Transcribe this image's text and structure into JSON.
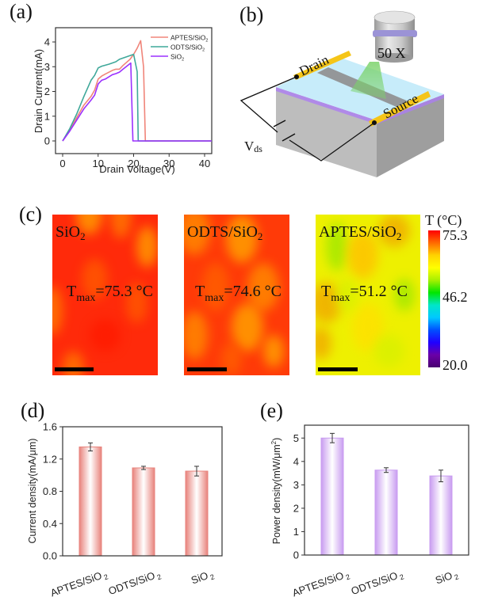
{
  "panels": {
    "a": "(a)",
    "b": "(b)",
    "c": "(c)",
    "d": "(d)",
    "e": "(e)"
  },
  "chart_data": [
    {
      "id": "a",
      "type": "line",
      "title": "",
      "xlabel": "Drain Voltage(V)",
      "ylabel": "Drain Current(mA)",
      "xlim": [
        -2,
        42
      ],
      "ylim": [
        -0.5,
        4.4
      ],
      "xticks": [
        0,
        10,
        20,
        30,
        40
      ],
      "yticks": [
        0,
        1,
        2,
        3,
        4
      ],
      "legend_position": "top-right",
      "series": [
        {
          "name": "APTES/SiO2",
          "label_main": "APTES/SiO",
          "label_sub": "2",
          "color": "#f0857a",
          "points": [
            [
              0,
              0
            ],
            [
              2,
              0.45
            ],
            [
              4,
              0.95
            ],
            [
              6,
              1.45
            ],
            [
              8,
              1.8
            ],
            [
              9,
              2.05
            ],
            [
              10,
              2.5
            ],
            [
              11,
              2.62
            ],
            [
              12,
              2.7
            ],
            [
              14,
              2.85
            ],
            [
              15,
              2.9
            ],
            [
              16,
              2.9
            ],
            [
              17,
              3.05
            ],
            [
              19,
              3.3
            ],
            [
              20,
              3.5
            ],
            [
              21,
              3.75
            ],
            [
              22,
              4.05
            ],
            [
              22.8,
              3.0
            ],
            [
              23.3,
              0
            ],
            [
              42,
              0
            ]
          ]
        },
        {
          "name": "ODTS/SiO2",
          "label_main": "ODTS/SiO",
          "label_sub": "2",
          "color": "#3fa89a",
          "points": [
            [
              0,
              0
            ],
            [
              2,
              0.5
            ],
            [
              4,
              1.1
            ],
            [
              6,
              1.8
            ],
            [
              8,
              2.45
            ],
            [
              9,
              2.65
            ],
            [
              10,
              2.95
            ],
            [
              11,
              3.02
            ],
            [
              13,
              3.1
            ],
            [
              15,
              3.2
            ],
            [
              16,
              3.3
            ],
            [
              18,
              3.4
            ],
            [
              20,
              3.5
            ],
            [
              21,
              2.8
            ],
            [
              21.3,
              0
            ],
            [
              42,
              0
            ]
          ]
        },
        {
          "name": "SiO2",
          "label_main": "SiO",
          "label_sub": "2",
          "color": "#9b30ff",
          "points": [
            [
              0,
              0
            ],
            [
              2,
              0.4
            ],
            [
              4,
              0.85
            ],
            [
              6,
              1.3
            ],
            [
              8,
              1.65
            ],
            [
              9,
              1.85
            ],
            [
              10,
              2.3
            ],
            [
              11,
              2.45
            ],
            [
              12,
              2.5
            ],
            [
              14,
              2.68
            ],
            [
              15,
              2.72
            ],
            [
              16,
              2.78
            ],
            [
              17,
              2.9
            ],
            [
              19.2,
              3.15
            ],
            [
              19.8,
              0
            ],
            [
              42,
              0
            ]
          ]
        }
      ]
    },
    {
      "id": "d",
      "type": "bar",
      "title": "",
      "xlabel": "",
      "ylabel": "Current density(mA/μm)",
      "categories": [
        "APTES/SiO2",
        "ODTS/SiO2",
        "SiO2"
      ],
      "category_labels": [
        {
          "main": "APTES/SiO",
          "sub": "2"
        },
        {
          "main": "ODTS/SiO",
          "sub": "2"
        },
        {
          "main": "SiO",
          "sub": "2"
        }
      ],
      "values": [
        1.35,
        1.09,
        1.05
      ],
      "errors": [
        0.05,
        0.02,
        0.06
      ],
      "ylim": [
        0,
        1.6
      ],
      "yticks": [
        "0.0",
        "0.4",
        "0.8",
        "1.2",
        "1.6"
      ],
      "ytick_values": [
        0,
        0.4,
        0.8,
        1.2,
        1.6
      ],
      "bar_color": "#e8837c",
      "bar_highlight": "#ffffff"
    },
    {
      "id": "e",
      "type": "bar",
      "title": "",
      "xlabel": "",
      "ylabel_main": "Power density(mW/μm",
      "ylabel_sup": "2",
      "ylabel_end": ")",
      "ylabel": "Power density(mW/μm²)",
      "categories": [
        "APTES/SiO2",
        "ODTS/SiO2",
        "SiO2"
      ],
      "category_labels": [
        {
          "main": "APTES/SiO",
          "sub": "2"
        },
        {
          "main": "ODTS/SiO",
          "sub": "2"
        },
        {
          "main": "SiO",
          "sub": "2"
        }
      ],
      "values": [
        5.0,
        3.63,
        3.38
      ],
      "errors": [
        0.2,
        0.1,
        0.25
      ],
      "ylim": [
        0,
        5.55
      ],
      "yticks": [
        "0",
        "1",
        "2",
        "3",
        "4",
        "5"
      ],
      "ytick_values": [
        0,
        1,
        2,
        3,
        4,
        5
      ],
      "bar_color": "#c89cf0",
      "bar_highlight": "#ffffff"
    }
  ],
  "schematic": {
    "objective_label": "50 X",
    "drain_label": "Drain",
    "source_label": "Source",
    "voltage_label_main": "V",
    "voltage_label_sub": "ds"
  },
  "thermal_maps": [
    {
      "label_main": "SiO",
      "label_sub": "2",
      "tmax_prefix": "T",
      "tmax_sub": "max",
      "tmax_value": "=75.3 °C",
      "tmax": 75.3,
      "palette": "hot"
    },
    {
      "label_main": "ODTS/SiO",
      "label_sub": "2",
      "tmax_prefix": "T",
      "tmax_sub": "max",
      "tmax_value": "=74.6 °C",
      "tmax": 74.6,
      "palette": "hot2"
    },
    {
      "label_main": "APTES/SiO",
      "label_sub": "2",
      "tmax_prefix": "T",
      "tmax_sub": "max",
      "tmax_value": "=51.2 °C",
      "tmax": 51.2,
      "palette": "warm"
    }
  ],
  "colorbar": {
    "title": "T (°C)",
    "max_label": "75.3",
    "mid_label": "46.2",
    "min_label": "20.0",
    "max": 75.3,
    "mid": 46.2,
    "min": 20.0,
    "stops": [
      "#ff0000",
      "#ff6a00",
      "#ffd200",
      "#ffff00",
      "#a6f000",
      "#00e600",
      "#00e6c8",
      "#00c8ff",
      "#0050ff",
      "#2000ff",
      "#6a00a8",
      "#4a0070"
    ]
  }
}
